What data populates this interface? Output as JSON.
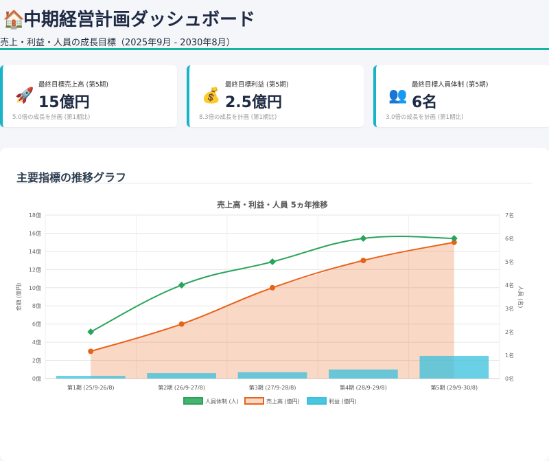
{
  "header": {
    "icon": "house-icon",
    "title": "中期経営計画ダッシュボード",
    "subtitle": "売上・利益・人員の成長目標（2025年9月 - 2030年8月）"
  },
  "cards": [
    {
      "icon": "rocket-icon",
      "label": "最終目標売上高 (第5期)",
      "value": "15億円",
      "note": "5.0倍の成長を計画 (第1期比)"
    },
    {
      "icon": "money-bag-icon",
      "label": "最終目標利益 (第5期)",
      "value": "2.5億円",
      "note": "8.3倍の成長を計画 (第1期比)"
    },
    {
      "icon": "people-icon",
      "label": "最終目標人員体制 (第5期)",
      "value": "6名",
      "note": "3.0倍の成長を計画 (第1期比)"
    }
  ],
  "panel": {
    "title": "主要指標の推移グラフ"
  },
  "colors": {
    "accent": "#17b3c9",
    "headcount": "#28a45a",
    "sales": "#e8631a",
    "profit": "#38c0dc"
  },
  "chart_data": {
    "type": "bar",
    "title": "売上高・利益・人員 5ヵ年推移",
    "categories": [
      "第1期 (25/9-26/8)",
      "第2期 (26/9-27/8)",
      "第3期 (27/9-28/8)",
      "第4期 (28/9-29/8)",
      "第5期 (29/9-30/8)"
    ],
    "ylabel": "金額 (億円)",
    "y2label": "人員 (名)",
    "ylim": [
      0,
      18
    ],
    "y2lim": [
      0,
      7
    ],
    "yticks": [
      "0億",
      "2億",
      "4億",
      "6億",
      "8億",
      "10億",
      "12億",
      "14億",
      "16億",
      "18億"
    ],
    "y2ticks": [
      "0名",
      "1名",
      "2名",
      "3名",
      "4名",
      "5名",
      "6名",
      "7名"
    ],
    "series": [
      {
        "name": "人員体制 (人)",
        "type": "line",
        "axis": "right",
        "values": [
          2,
          4,
          5,
          6,
          6
        ]
      },
      {
        "name": "売上高 (億円)",
        "type": "area",
        "axis": "left",
        "values": [
          3,
          6,
          10,
          13,
          15
        ]
      },
      {
        "name": "利益 (億円)",
        "type": "bar",
        "axis": "left",
        "values": [
          0.3,
          0.6,
          0.7,
          1.0,
          2.5
        ]
      }
    ],
    "legend": "bottom",
    "grid": true
  }
}
